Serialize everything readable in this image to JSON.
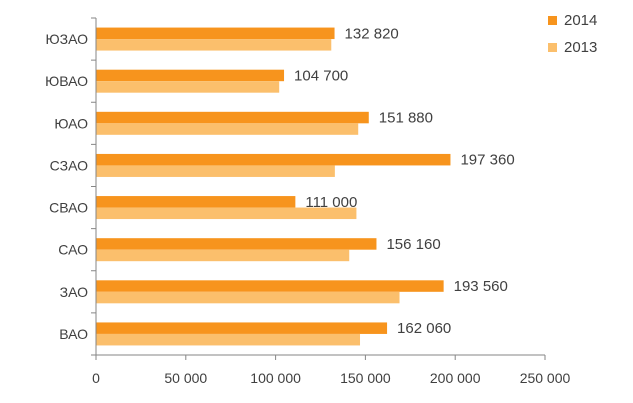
{
  "chart_data": {
    "type": "bar",
    "orientation": "horizontal",
    "categories": [
      "ЮЗАО",
      "ЮВАО",
      "ЮАО",
      "СЗАО",
      "СВАО",
      "САО",
      "ЗАО",
      "ВАО"
    ],
    "series": [
      {
        "name": "2014",
        "color": "#F7941D",
        "values": [
          132820,
          104700,
          151880,
          197360,
          111000,
          156160,
          193560,
          162060
        ],
        "labels": [
          "132 820",
          "104 700",
          "151 880",
          "197 360",
          "111 000",
          "156 160",
          "193 560",
          "162 060"
        ]
      },
      {
        "name": "2013",
        "color": "#FBBF6C",
        "values": [
          131000,
          102000,
          146000,
          133000,
          145000,
          141000,
          169000,
          147000
        ]
      }
    ],
    "xlim": [
      0,
      250000
    ],
    "xticks": [
      0,
      50000,
      100000,
      150000,
      200000,
      250000
    ],
    "xtick_labels": [
      "0",
      "50 000",
      "100 000",
      "150 000",
      "200 000",
      "250 000"
    ],
    "title": "",
    "xlabel": "",
    "ylabel": "",
    "grid": false,
    "legend_position": "top-right"
  }
}
